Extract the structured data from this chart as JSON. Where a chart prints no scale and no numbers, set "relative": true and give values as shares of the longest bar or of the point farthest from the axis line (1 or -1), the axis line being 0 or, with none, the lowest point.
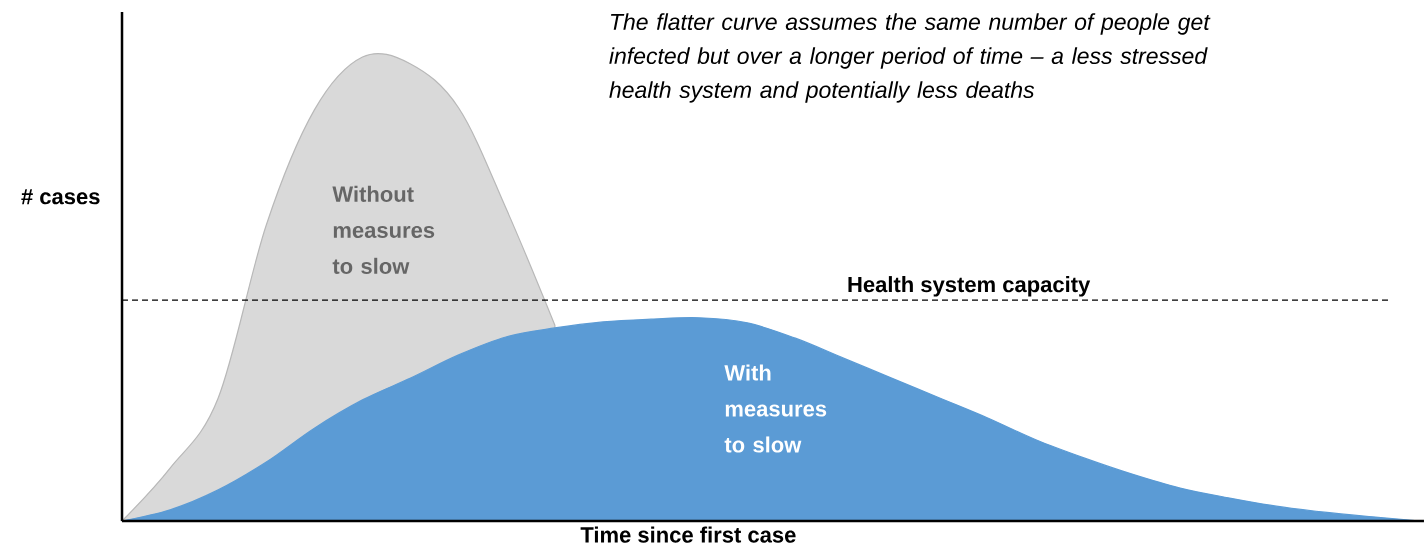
{
  "chart_data": {
    "type": "area",
    "relative": true,
    "xlabel": "Time since first case",
    "ylabel": "# cases",
    "categories": [
      null,
      null,
      null,
      null,
      null,
      null,
      null,
      null,
      null,
      null,
      null,
      null,
      null,
      null,
      null,
      null,
      null,
      null,
      null,
      null,
      null,
      null,
      null,
      null,
      null,
      null,
      null,
      null
    ],
    "series": [
      {
        "name": "Without measures to slow",
        "color": "#d9d9d9",
        "values": [
          0,
          0.114,
          0.265,
          0.638,
          0.886,
          1,
          0.985,
          0.89,
          0.67,
          0.422,
          null,
          null,
          null,
          null,
          null,
          null,
          null,
          null,
          null,
          null,
          null,
          null,
          null,
          null,
          null,
          null,
          null,
          null
        ]
      },
      {
        "name": "With measures to slow",
        "color": "#5b9bd5",
        "values": [
          0,
          0.024,
          0.067,
          0.127,
          0.2,
          0.261,
          0.308,
          0.358,
          0.397,
          0.416,
          0.429,
          0.435,
          0.438,
          0.427,
          0.394,
          0.351,
          0.308,
          0.265,
          0.222,
          0.175,
          0.136,
          0.101,
          0.071,
          0.05,
          0.032,
          0.019,
          0.009,
          0
        ]
      }
    ],
    "ref_lines": [
      {
        "axis": "y",
        "value": 0.476,
        "label": "Health system capacity",
        "color": "#000000",
        "line_style": "dashed"
      }
    ],
    "annotations": [
      "The flatter curve assumes the same number of people get infected but over a longer period of time – a less stressed health system and potentially less deaths"
    ]
  }
}
